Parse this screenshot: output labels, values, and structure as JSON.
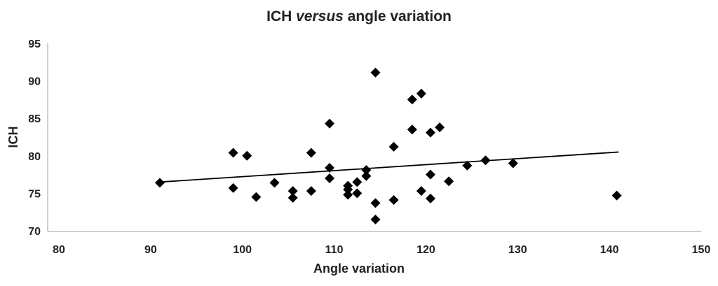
{
  "chart_data": {
    "type": "scatter",
    "title_main": "ICH ",
    "title_italic": "versus",
    "title_rest": " angle variation",
    "xlabel": "Angle variation",
    "ylabel": "ICH",
    "xlim": [
      80,
      150
    ],
    "ylim": [
      70,
      95
    ],
    "xticks": [
      "80",
      "90",
      "100",
      "110",
      "120",
      "130",
      "140",
      "150"
    ],
    "yticks": [
      "70",
      "75",
      "80",
      "85",
      "90",
      "95"
    ],
    "grid": false,
    "marker": "diamond",
    "marker_color": "#000000",
    "points": [
      [
        91,
        76.4
      ],
      [
        99,
        80.4
      ],
      [
        99,
        75.7
      ],
      [
        100.5,
        80.0
      ],
      [
        101.5,
        74.5
      ],
      [
        103.5,
        76.4
      ],
      [
        105.5,
        75.3
      ],
      [
        105.5,
        74.4
      ],
      [
        107.5,
        80.4
      ],
      [
        107.5,
        75.3
      ],
      [
        109.5,
        84.3
      ],
      [
        109.5,
        78.4
      ],
      [
        109.5,
        77.0
      ],
      [
        111.5,
        76.0
      ],
      [
        111.5,
        75.5
      ],
      [
        111.5,
        74.8
      ],
      [
        112.5,
        76.5
      ],
      [
        112.5,
        75.0
      ],
      [
        113.5,
        78.1
      ],
      [
        113.5,
        77.3
      ],
      [
        114.5,
        91.1
      ],
      [
        114.5,
        73.7
      ],
      [
        114.5,
        71.5
      ],
      [
        116.5,
        81.2
      ],
      [
        116.5,
        74.1
      ],
      [
        118.5,
        87.5
      ],
      [
        118.5,
        83.5
      ],
      [
        119.5,
        88.3
      ],
      [
        119.5,
        75.3
      ],
      [
        120.5,
        83.1
      ],
      [
        120.5,
        77.5
      ],
      [
        120.5,
        74.3
      ],
      [
        121.5,
        83.8
      ],
      [
        122.5,
        76.6
      ],
      [
        124.5,
        78.7
      ],
      [
        126.5,
        79.4
      ],
      [
        129.5,
        79.0
      ],
      [
        140.8,
        74.7
      ]
    ],
    "trendline": {
      "type": "linear",
      "x": [
        91,
        141
      ],
      "y": [
        76.5,
        80.5
      ]
    }
  }
}
